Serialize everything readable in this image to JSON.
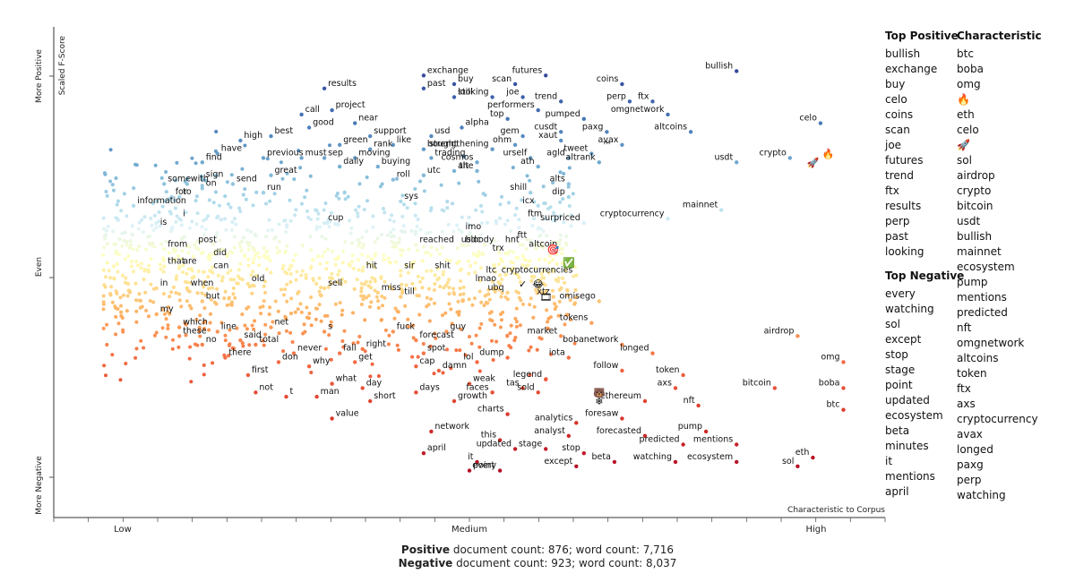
{
  "chart_data": {
    "type": "scatter",
    "title": "",
    "xlabel": "Characteristic to Corpus",
    "ylabel": "Scaled F-Score",
    "x_ticks": [
      "Low",
      "Medium",
      "High"
    ],
    "y_ticks": [
      "More Positive",
      "Even",
      "More Negative"
    ],
    "x_range": [
      0,
      1
    ],
    "y_range": [
      0,
      1
    ],
    "terms": [
      {
        "term": "bullish",
        "x": 0.85,
        "y": 0.96
      },
      {
        "term": "celo",
        "x": 0.96,
        "y": 0.84
      },
      {
        "term": "crypto",
        "x": 0.92,
        "y": 0.76
      },
      {
        "term": "usdt",
        "x": 0.85,
        "y": 0.75
      },
      {
        "term": "exchange",
        "x": 0.44,
        "y": 0.95
      },
      {
        "term": "buy",
        "x": 0.48,
        "y": 0.93
      },
      {
        "term": "past",
        "x": 0.44,
        "y": 0.92
      },
      {
        "term": "still",
        "x": 0.48,
        "y": 0.9
      },
      {
        "term": "results",
        "x": 0.31,
        "y": 0.92
      },
      {
        "term": "futures",
        "x": 0.6,
        "y": 0.95
      },
      {
        "term": "scan",
        "x": 0.56,
        "y": 0.93
      },
      {
        "term": "coins",
        "x": 0.7,
        "y": 0.93
      },
      {
        "term": "joe",
        "x": 0.57,
        "y": 0.9
      },
      {
        "term": "looking",
        "x": 0.53,
        "y": 0.9
      },
      {
        "term": "trend",
        "x": 0.62,
        "y": 0.89
      },
      {
        "term": "perp",
        "x": 0.71,
        "y": 0.89
      },
      {
        "term": "ftx",
        "x": 0.74,
        "y": 0.89
      },
      {
        "term": "project",
        "x": 0.32,
        "y": 0.87
      },
      {
        "term": "performers",
        "x": 0.59,
        "y": 0.87
      },
      {
        "term": "top",
        "x": 0.55,
        "y": 0.85
      },
      {
        "term": "pumped",
        "x": 0.65,
        "y": 0.85
      },
      {
        "term": "omgnetwork",
        "x": 0.76,
        "y": 0.86
      },
      {
        "term": "call",
        "x": 0.28,
        "y": 0.86
      },
      {
        "term": "near",
        "x": 0.35,
        "y": 0.84
      },
      {
        "term": "alpha",
        "x": 0.49,
        "y": 0.83
      },
      {
        "term": "good",
        "x": 0.29,
        "y": 0.83
      },
      {
        "term": "cusdt",
        "x": 0.62,
        "y": 0.82
      },
      {
        "term": "paxg",
        "x": 0.68,
        "y": 0.82
      },
      {
        "term": "altcoins",
        "x": 0.79,
        "y": 0.82
      },
      {
        "term": "best",
        "x": 0.24,
        "y": 0.81
      },
      {
        "term": "support",
        "x": 0.37,
        "y": 0.81
      },
      {
        "term": "usd",
        "x": 0.45,
        "y": 0.81
      },
      {
        "term": "gem",
        "x": 0.57,
        "y": 0.81
      },
      {
        "term": "xaut",
        "x": 0.62,
        "y": 0.8
      },
      {
        "term": "high",
        "x": 0.2,
        "y": 0.8
      },
      {
        "term": "green",
        "x": 0.33,
        "y": 0.79
      },
      {
        "term": "like",
        "x": 0.4,
        "y": 0.79
      },
      {
        "term": "ohm",
        "x": 0.56,
        "y": 0.79
      },
      {
        "term": "avax",
        "x": 0.7,
        "y": 0.79
      },
      {
        "term": "rank",
        "x": 0.37,
        "y": 0.78
      },
      {
        "term": "bought",
        "x": 0.44,
        "y": 0.78
      },
      {
        "term": "strengthening",
        "x": 0.53,
        "y": 0.78
      },
      {
        "term": "tweet",
        "x": 0.66,
        "y": 0.77
      },
      {
        "term": "must",
        "x": 0.28,
        "y": 0.76
      },
      {
        "term": "sep",
        "x": 0.31,
        "y": 0.76
      },
      {
        "term": "moving",
        "x": 0.35,
        "y": 0.76
      },
      {
        "term": "trading",
        "x": 0.45,
        "y": 0.76
      },
      {
        "term": "urself",
        "x": 0.58,
        "y": 0.76
      },
      {
        "term": "agld",
        "x": 0.63,
        "y": 0.76
      },
      {
        "term": "altrank",
        "x": 0.67,
        "y": 0.75
      },
      {
        "term": "have",
        "x": 0.17,
        "y": 0.77
      },
      {
        "term": "previous",
        "x": 0.23,
        "y": 0.76
      },
      {
        "term": "find",
        "x": 0.15,
        "y": 0.75
      },
      {
        "term": "daily",
        "x": 0.33,
        "y": 0.74
      },
      {
        "term": "buying",
        "x": 0.38,
        "y": 0.74
      },
      {
        "term": "cosmos",
        "x": 0.51,
        "y": 0.75
      },
      {
        "term": "ath",
        "x": 0.59,
        "y": 0.74
      },
      {
        "term": "alt",
        "x": 0.48,
        "y": 0.73
      },
      {
        "term": "the",
        "x": 0.51,
        "y": 0.73
      },
      {
        "term": "utc",
        "x": 0.44,
        "y": 0.72
      },
      {
        "term": "great",
        "x": 0.24,
        "y": 0.72
      },
      {
        "term": "sign",
        "x": 0.15,
        "y": 0.71
      },
      {
        "term": "with",
        "x": 0.13,
        "y": 0.7
      },
      {
        "term": "some",
        "x": 0.1,
        "y": 0.7
      },
      {
        "term": "send",
        "x": 0.19,
        "y": 0.7
      },
      {
        "term": "roll",
        "x": 0.4,
        "y": 0.71
      },
      {
        "term": "alts",
        "x": 0.63,
        "y": 0.7
      },
      {
        "term": "on",
        "x": 0.15,
        "y": 0.69
      },
      {
        "term": "run",
        "x": 0.23,
        "y": 0.68
      },
      {
        "term": "shill",
        "x": 0.58,
        "y": 0.68
      },
      {
        "term": "dip",
        "x": 0.63,
        "y": 0.67
      },
      {
        "term": "for",
        "x": 0.11,
        "y": 0.67
      },
      {
        "term": "to",
        "x": 0.12,
        "y": 0.67
      },
      {
        "term": "sys",
        "x": 0.41,
        "y": 0.66
      },
      {
        "term": "icx",
        "x": 0.59,
        "y": 0.65
      },
      {
        "term": "information",
        "x": 0.06,
        "y": 0.65
      },
      {
        "term": "mainnet",
        "x": 0.83,
        "y": 0.64
      },
      {
        "term": "cryptocurrency",
        "x": 0.76,
        "y": 0.62
      },
      {
        "term": "i",
        "x": 0.12,
        "y": 0.62
      },
      {
        "term": "cup",
        "x": 0.31,
        "y": 0.61
      },
      {
        "term": "ftm",
        "x": 0.6,
        "y": 0.62
      },
      {
        "term": "surpriced",
        "x": 0.65,
        "y": 0.61
      },
      {
        "term": "is",
        "x": 0.09,
        "y": 0.6
      },
      {
        "term": "imo",
        "x": 0.49,
        "y": 0.59
      },
      {
        "term": "ftt",
        "x": 0.58,
        "y": 0.57
      },
      {
        "term": "post",
        "x": 0.14,
        "y": 0.56
      },
      {
        "term": "reached",
        "x": 0.43,
        "y": 0.56
      },
      {
        "term": "bloody",
        "x": 0.49,
        "y": 0.56
      },
      {
        "term": "usdc",
        "x": 0.52,
        "y": 0.56
      },
      {
        "term": "hnt",
        "x": 0.57,
        "y": 0.56
      },
      {
        "term": "altcoin",
        "x": 0.62,
        "y": 0.55
      },
      {
        "term": "from",
        "x": 0.1,
        "y": 0.55
      },
      {
        "term": "trx",
        "x": 0.55,
        "y": 0.54
      },
      {
        "term": "did",
        "x": 0.16,
        "y": 0.53
      },
      {
        "term": "that",
        "x": 0.1,
        "y": 0.51
      },
      {
        "term": "are",
        "x": 0.12,
        "y": 0.51
      },
      {
        "term": "can",
        "x": 0.16,
        "y": 0.5
      },
      {
        "term": "hit",
        "x": 0.36,
        "y": 0.5
      },
      {
        "term": "sir",
        "x": 0.41,
        "y": 0.5
      },
      {
        "term": "shit",
        "x": 0.45,
        "y": 0.5
      },
      {
        "term": "ltc",
        "x": 0.54,
        "y": 0.49
      },
      {
        "term": "cryptocurrencies",
        "x": 0.64,
        "y": 0.49
      },
      {
        "term": "old",
        "x": 0.21,
        "y": 0.47
      },
      {
        "term": "sell",
        "x": 0.31,
        "y": 0.46
      },
      {
        "term": "in",
        "x": 0.09,
        "y": 0.46
      },
      {
        "term": "when",
        "x": 0.13,
        "y": 0.46
      },
      {
        "term": "lmao",
        "x": 0.54,
        "y": 0.47
      },
      {
        "term": "miss",
        "x": 0.38,
        "y": 0.45
      },
      {
        "term": "till",
        "x": 0.41,
        "y": 0.44
      },
      {
        "term": "ubq",
        "x": 0.55,
        "y": 0.45
      },
      {
        "term": "xtz",
        "x": 0.61,
        "y": 0.44
      },
      {
        "term": "omisego",
        "x": 0.67,
        "y": 0.43
      },
      {
        "term": "but",
        "x": 0.15,
        "y": 0.43
      },
      {
        "term": "my",
        "x": 0.09,
        "y": 0.4
      },
      {
        "term": "tokens",
        "x": 0.66,
        "y": 0.38
      },
      {
        "term": "which",
        "x": 0.12,
        "y": 0.37
      },
      {
        "term": "line",
        "x": 0.17,
        "y": 0.36
      },
      {
        "term": "net",
        "x": 0.24,
        "y": 0.37
      },
      {
        "term": "s",
        "x": 0.31,
        "y": 0.36
      },
      {
        "term": "fuck",
        "x": 0.4,
        "y": 0.36
      },
      {
        "term": "guy",
        "x": 0.47,
        "y": 0.36
      },
      {
        "term": "market",
        "x": 0.62,
        "y": 0.35
      },
      {
        "term": "these",
        "x": 0.12,
        "y": 0.35
      },
      {
        "term": "said",
        "x": 0.2,
        "y": 0.34
      },
      {
        "term": "no",
        "x": 0.15,
        "y": 0.33
      },
      {
        "term": "total",
        "x": 0.22,
        "y": 0.33
      },
      {
        "term": "forecast",
        "x": 0.43,
        "y": 0.34
      },
      {
        "term": "bobanetwork",
        "x": 0.7,
        "y": 0.33
      },
      {
        "term": "airdrop",
        "x": 0.93,
        "y": 0.35
      },
      {
        "term": "right",
        "x": 0.36,
        "y": 0.32
      },
      {
        "term": "never",
        "x": 0.27,
        "y": 0.31
      },
      {
        "term": "fall",
        "x": 0.33,
        "y": 0.31
      },
      {
        "term": "spot",
        "x": 0.44,
        "y": 0.31
      },
      {
        "term": "dump",
        "x": 0.55,
        "y": 0.3
      },
      {
        "term": "iota",
        "x": 0.63,
        "y": 0.3
      },
      {
        "term": "longed",
        "x": 0.74,
        "y": 0.31
      },
      {
        "term": "there",
        "x": 0.18,
        "y": 0.3
      },
      {
        "term": "get",
        "x": 0.35,
        "y": 0.29
      },
      {
        "term": "lol",
        "x": 0.51,
        "y": 0.29
      },
      {
        "term": "omg",
        "x": 0.99,
        "y": 0.29
      },
      {
        "term": "don",
        "x": 0.25,
        "y": 0.29
      },
      {
        "term": "why",
        "x": 0.29,
        "y": 0.28
      },
      {
        "term": "cap",
        "x": 0.43,
        "y": 0.28
      },
      {
        "term": "damn",
        "x": 0.46,
        "y": 0.27
      },
      {
        "term": "first",
        "x": 0.21,
        "y": 0.26
      },
      {
        "term": "follow",
        "x": 0.7,
        "y": 0.27
      },
      {
        "term": "token",
        "x": 0.78,
        "y": 0.26
      },
      {
        "term": "legend",
        "x": 0.6,
        "y": 0.25
      },
      {
        "term": "what",
        "x": 0.32,
        "y": 0.24
      },
      {
        "term": "weak",
        "x": 0.5,
        "y": 0.24
      },
      {
        "term": "day",
        "x": 0.36,
        "y": 0.23
      },
      {
        "term": "tas",
        "x": 0.57,
        "y": 0.23
      },
      {
        "term": "axs",
        "x": 0.77,
        "y": 0.23
      },
      {
        "term": "boba",
        "x": 0.99,
        "y": 0.23
      },
      {
        "term": "not",
        "x": 0.22,
        "y": 0.22
      },
      {
        "term": "bitcoin",
        "x": 0.9,
        "y": 0.23
      },
      {
        "term": "man",
        "x": 0.3,
        "y": 0.21
      },
      {
        "term": "t",
        "x": 0.26,
        "y": 0.21
      },
      {
        "term": "days",
        "x": 0.43,
        "y": 0.22
      },
      {
        "term": "faces",
        "x": 0.53,
        "y": 0.22
      },
      {
        "term": "sold",
        "x": 0.59,
        "y": 0.22
      },
      {
        "term": "short",
        "x": 0.37,
        "y": 0.2
      },
      {
        "term": "growth",
        "x": 0.48,
        "y": 0.2
      },
      {
        "term": "ethereum",
        "x": 0.73,
        "y": 0.2
      },
      {
        "term": "nft",
        "x": 0.8,
        "y": 0.19
      },
      {
        "term": "btc",
        "x": 0.99,
        "y": 0.18
      },
      {
        "term": "charts",
        "x": 0.55,
        "y": 0.17
      },
      {
        "term": "value",
        "x": 0.32,
        "y": 0.16
      },
      {
        "term": "foresaw",
        "x": 0.7,
        "y": 0.16
      },
      {
        "term": "analytics",
        "x": 0.64,
        "y": 0.15
      },
      {
        "term": "network",
        "x": 0.45,
        "y": 0.13
      },
      {
        "term": "pump",
        "x": 0.81,
        "y": 0.13
      },
      {
        "term": "analyst",
        "x": 0.63,
        "y": 0.12
      },
      {
        "term": "forecasted",
        "x": 0.73,
        "y": 0.12
      },
      {
        "term": "this",
        "x": 0.54,
        "y": 0.11
      },
      {
        "term": "predicted",
        "x": 0.78,
        "y": 0.1
      },
      {
        "term": "mentions",
        "x": 0.85,
        "y": 0.1
      },
      {
        "term": "updated",
        "x": 0.56,
        "y": 0.09
      },
      {
        "term": "stage",
        "x": 0.6,
        "y": 0.09
      },
      {
        "term": "april",
        "x": 0.44,
        "y": 0.08
      },
      {
        "term": "stop",
        "x": 0.65,
        "y": 0.08
      },
      {
        "term": "eth",
        "x": 0.95,
        "y": 0.07
      },
      {
        "term": "it",
        "x": 0.51,
        "y": 0.06
      },
      {
        "term": "beta",
        "x": 0.69,
        "y": 0.06
      },
      {
        "term": "watching",
        "x": 0.77,
        "y": 0.06
      },
      {
        "term": "ecosystem",
        "x": 0.85,
        "y": 0.06
      },
      {
        "term": "sol",
        "x": 0.93,
        "y": 0.05
      },
      {
        "term": "point",
        "x": 0.5,
        "y": 0.04
      },
      {
        "term": "every",
        "x": 0.54,
        "y": 0.04
      },
      {
        "term": "except",
        "x": 0.64,
        "y": 0.05
      }
    ],
    "emoji_terms": [
      {
        "symbol": "🔥",
        "x": 0.97,
        "y": 0.77
      },
      {
        "symbol": "🚀",
        "x": 0.95,
        "y": 0.75
      },
      {
        "symbol": "🎯",
        "x": 0.61,
        "y": 0.55
      },
      {
        "symbol": "✅",
        "x": 0.63,
        "y": 0.52
      },
      {
        "symbol": "😂",
        "x": 0.59,
        "y": 0.47
      },
      {
        "symbol": "✓",
        "x": 0.57,
        "y": 0.47
      },
      {
        "symbol": "🎞",
        "x": 0.6,
        "y": 0.44
      },
      {
        "symbol": "™",
        "x": 0.68,
        "y": 0.79
      },
      {
        "symbol": "🐻",
        "x": 0.67,
        "y": 0.22
      },
      {
        "symbol": "❄",
        "x": 0.67,
        "y": 0.2
      }
    ],
    "background_points": 1200
  },
  "sidebar": {
    "top_positive_title": "Top Positive",
    "top_positive": [
      "bullish",
      "exchange",
      "buy",
      "celo",
      "coins",
      "scan",
      "joe",
      "futures",
      "trend",
      "ftx",
      "results",
      "perp",
      "past",
      "looking"
    ],
    "top_negative_title": "Top Negative",
    "top_negative": [
      "every",
      "watching",
      "sol",
      "except",
      "stop",
      "stage",
      "point",
      "updated",
      "ecosystem",
      "beta",
      "minutes",
      "it",
      "mentions",
      "april"
    ],
    "characteristic_title": "Characteristic",
    "characteristic": [
      "btc",
      "boba",
      "omg",
      "🔥",
      "eth",
      "celo",
      "🚀",
      "sol",
      "airdrop",
      "crypto",
      "bitcoin",
      "usdt",
      "bullish",
      "mainnet",
      "ecosystem",
      "pump",
      "mentions",
      "predicted",
      "nft",
      "omgnetwork",
      "altcoins",
      "token",
      "ftx",
      "axs",
      "cryptocurrency",
      "avax",
      "longed",
      "paxg",
      "perp",
      "watching"
    ]
  },
  "summary": {
    "pos_label": "Positive",
    "pos_text": " document count: 876; word count: 7,716",
    "neg_label": "Negative",
    "neg_text": " document count: 923; word count: 8,037"
  }
}
